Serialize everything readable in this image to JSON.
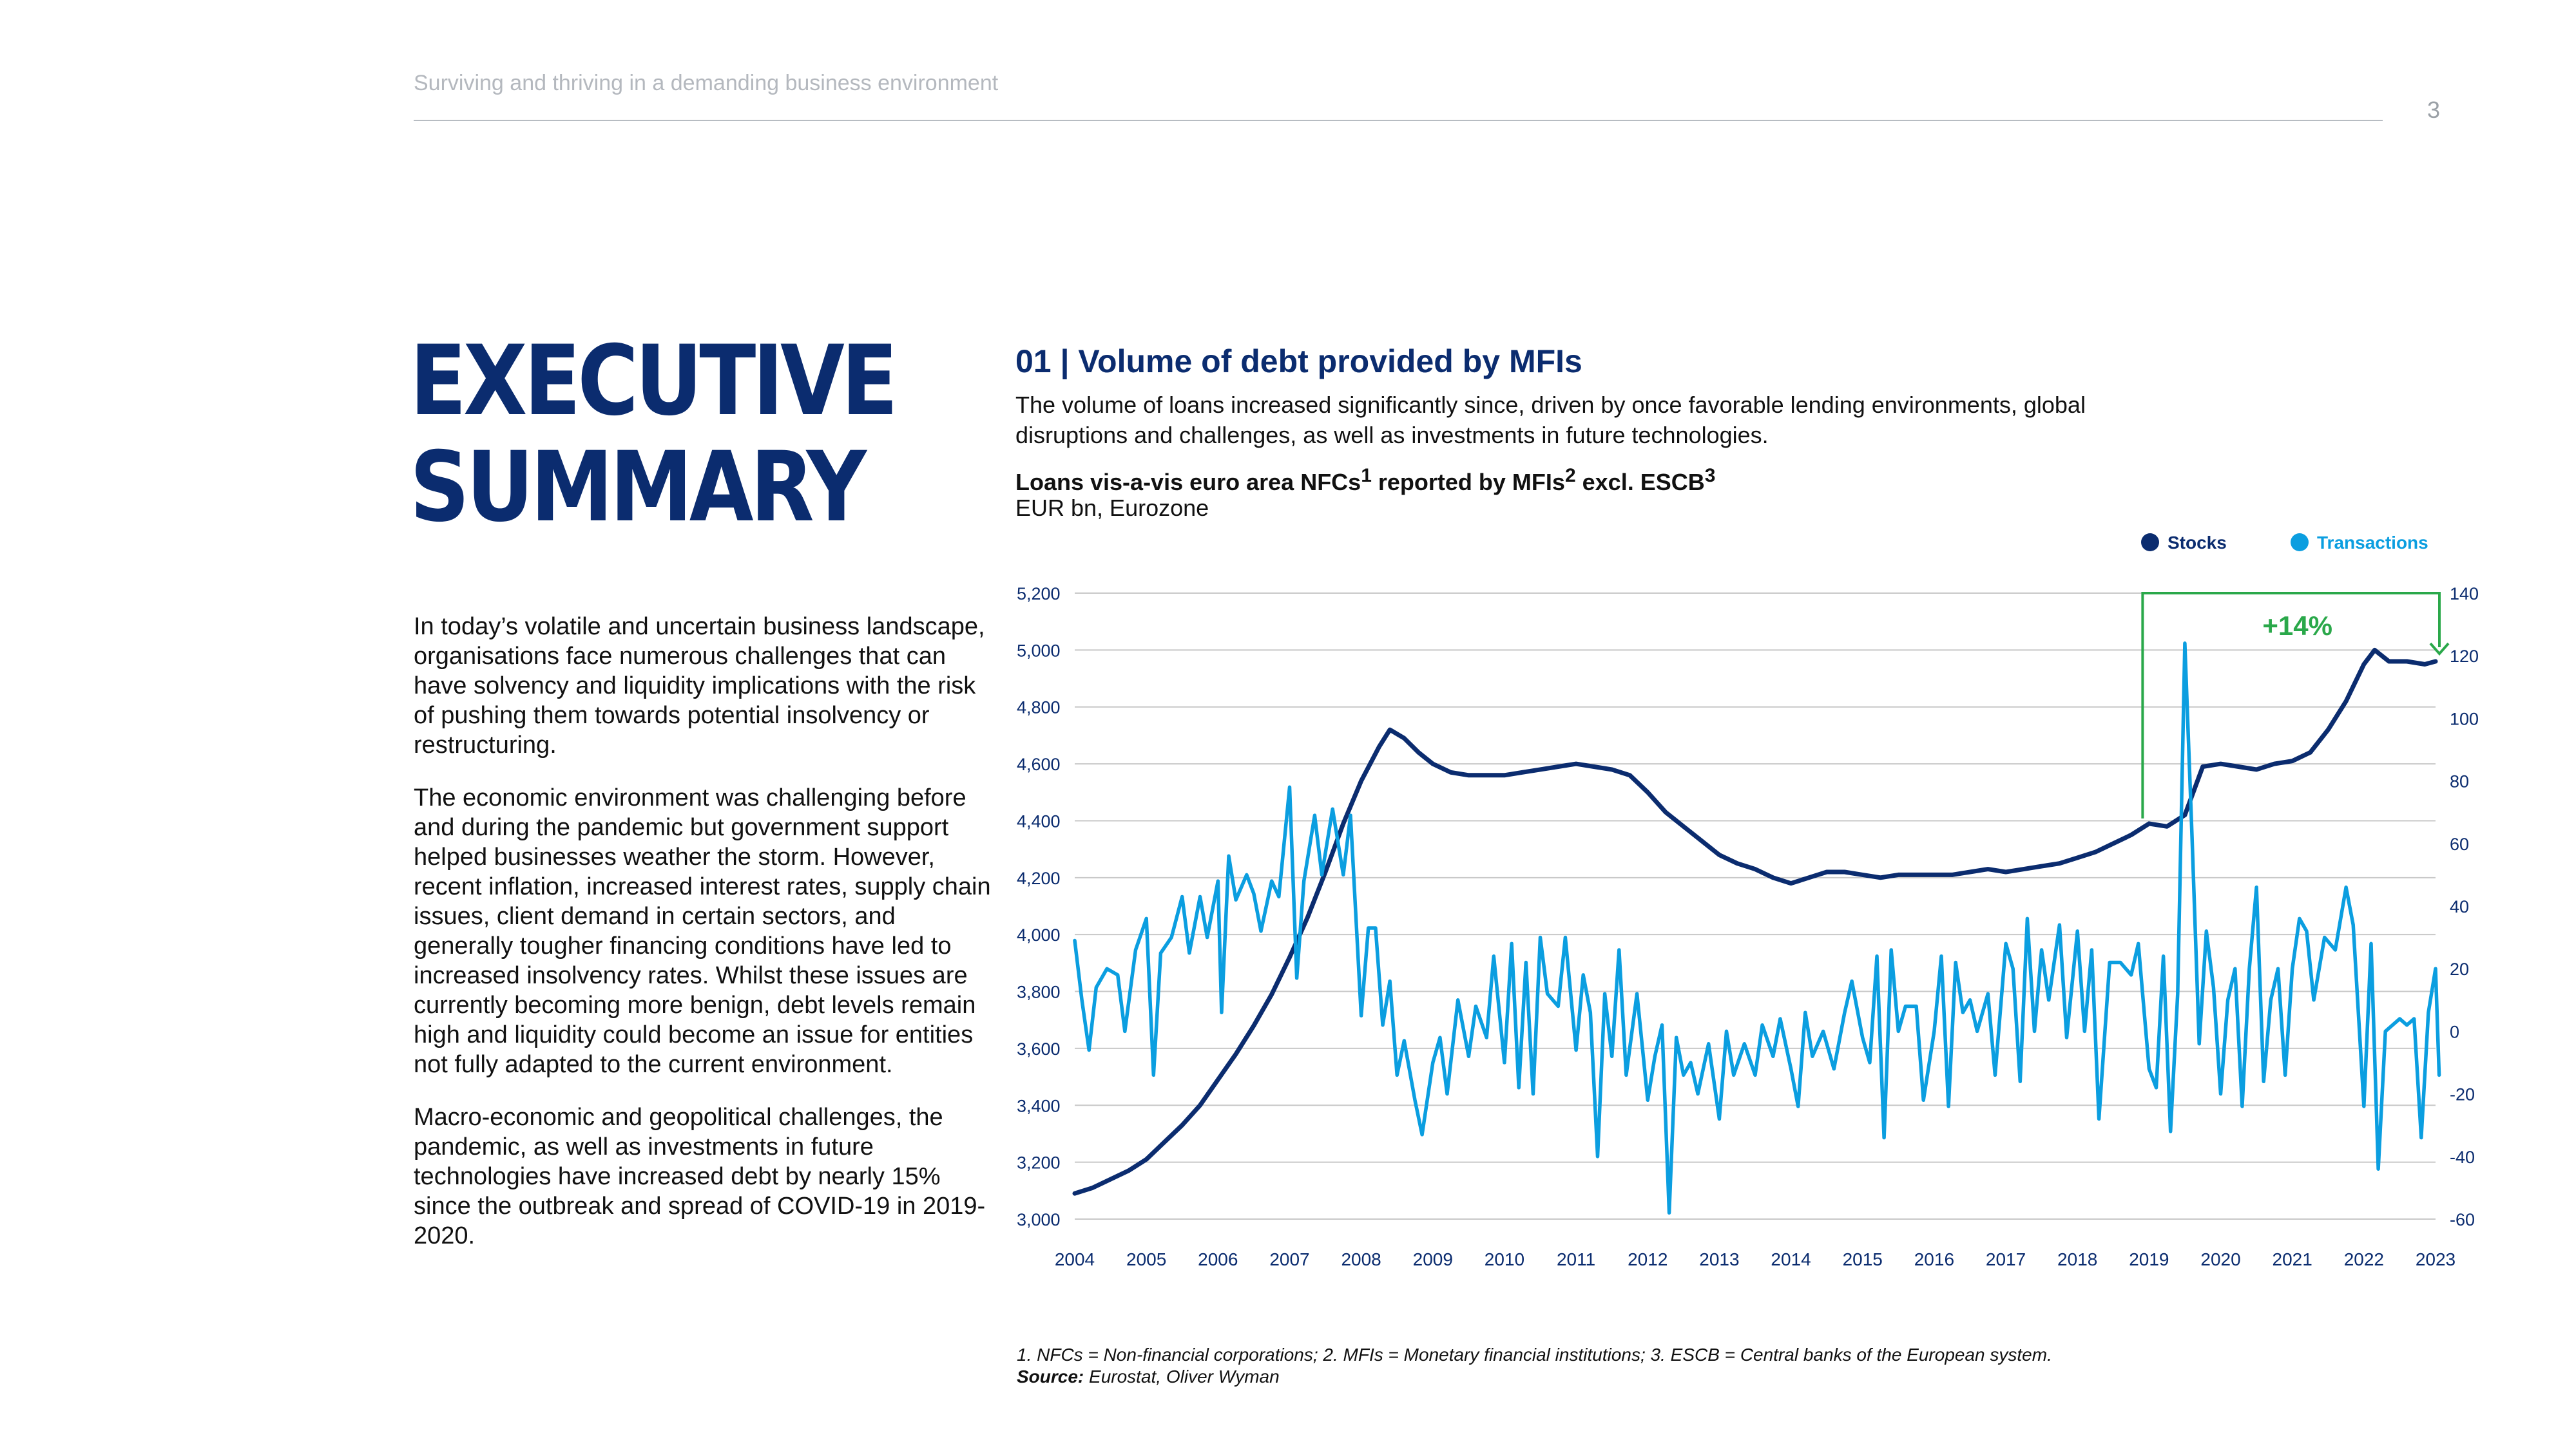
{
  "header": {
    "title": "Surviving and thriving in a demanding business environment",
    "page_number": "3"
  },
  "summary": {
    "title_line1": "EXECUTIVE",
    "title_line2": "SUMMARY",
    "paragraph1": "In today’s volatile and uncertain business landscape, organisations face numerous challenges that can have solvency and liquidity implications with the risk of pushing them towards potential insolvency or restructuring.",
    "paragraph2": "The economic environment was challenging before and during the pandemic but government support helped businesses weather the storm. However, recent inflation, increased interest rates, supply chain issues, client demand in certain sectors, and generally tougher financing conditions have led to increased insolvency rates. Whilst these issues are currently becoming more benign, debt levels remain high and liquidity could become an issue for entities not fully adapted to the current environment.",
    "paragraph3": "Macro-economic and geopolitical challenges, the pandemic, as well as investments in future technologies have increased debt by nearly 15% since the outbreak and spread of COVID-19 in 2019-2020."
  },
  "chart_section": {
    "title": "01 | Volume of debt provided by MFIs",
    "description": "The volume of loans increased significantly since, driven by once favorable lending environments, global disruptions and challenges, as well as investments in future technologies.",
    "subtitle_main": "Loans vis-a-vis euro area NFCs",
    "sup1": "1",
    "subtitle_mid": " reported by MFIs",
    "sup2": "2",
    "subtitle_end": " excl. ESCB",
    "sup3": "3",
    "unit": "EUR bn, Eurozone"
  },
  "colors": {
    "stocks": "#0b2c6f",
    "transactions": "#0b9ee0",
    "annotation": "#2aa84a",
    "grid": "#c8c8c8"
  },
  "chart_data": {
    "type": "line",
    "x_labels": [
      "2004",
      "2005",
      "2006",
      "2007",
      "2008",
      "2009",
      "2010",
      "2011",
      "2012",
      "2013",
      "2014",
      "2015",
      "2016",
      "2017",
      "2018",
      "2019",
      "2020",
      "2021",
      "2022",
      "2023"
    ],
    "left_axis": {
      "min": 3000,
      "max": 5200,
      "ticks": [
        "3,000",
        "3,200",
        "3,400",
        "3,600",
        "3,800",
        "4,000",
        "4,200",
        "4,400",
        "4,600",
        "4,800",
        "5,000",
        "5,200"
      ]
    },
    "right_axis": {
      "min": -60,
      "max": 140,
      "ticks": [
        "-60",
        "-40",
        "-20",
        "0",
        "20",
        "40",
        "60",
        "80",
        "100",
        "120",
        "140"
      ]
    },
    "legend": {
      "position": "top-right",
      "items": [
        "Stocks",
        "Transactions"
      ]
    },
    "annotation": {
      "label": "+14%",
      "from_year": 2019.0,
      "to_year": 2023.0,
      "level": 5200
    },
    "series": [
      {
        "name": "Stocks",
        "axis": "left",
        "points": [
          [
            2004.0,
            3090
          ],
          [
            2004.25,
            3110
          ],
          [
            2004.5,
            3140
          ],
          [
            2004.75,
            3170
          ],
          [
            2005.0,
            3210
          ],
          [
            2005.25,
            3270
          ],
          [
            2005.5,
            3330
          ],
          [
            2005.75,
            3400
          ],
          [
            2006.0,
            3490
          ],
          [
            2006.25,
            3580
          ],
          [
            2006.5,
            3680
          ],
          [
            2006.75,
            3790
          ],
          [
            2007.0,
            3920
          ],
          [
            2007.25,
            4060
          ],
          [
            2007.5,
            4220
          ],
          [
            2007.75,
            4390
          ],
          [
            2008.0,
            4540
          ],
          [
            2008.25,
            4660
          ],
          [
            2008.4,
            4720
          ],
          [
            2008.6,
            4690
          ],
          [
            2008.8,
            4640
          ],
          [
            2009.0,
            4600
          ],
          [
            2009.25,
            4570
          ],
          [
            2009.5,
            4560
          ],
          [
            2009.75,
            4560
          ],
          [
            2010.0,
            4560
          ],
          [
            2010.25,
            4570
          ],
          [
            2010.5,
            4580
          ],
          [
            2010.75,
            4590
          ],
          [
            2011.0,
            4600
          ],
          [
            2011.25,
            4590
          ],
          [
            2011.5,
            4580
          ],
          [
            2011.75,
            4560
          ],
          [
            2012.0,
            4500
          ],
          [
            2012.25,
            4430
          ],
          [
            2012.5,
            4380
          ],
          [
            2012.75,
            4330
          ],
          [
            2013.0,
            4280
          ],
          [
            2013.25,
            4250
          ],
          [
            2013.5,
            4230
          ],
          [
            2013.75,
            4200
          ],
          [
            2014.0,
            4180
          ],
          [
            2014.25,
            4200
          ],
          [
            2014.5,
            4220
          ],
          [
            2014.75,
            4220
          ],
          [
            2015.0,
            4210
          ],
          [
            2015.25,
            4200
          ],
          [
            2015.5,
            4210
          ],
          [
            2015.75,
            4210
          ],
          [
            2016.0,
            4210
          ],
          [
            2016.25,
            4210
          ],
          [
            2016.5,
            4220
          ],
          [
            2016.75,
            4230
          ],
          [
            2017.0,
            4220
          ],
          [
            2017.25,
            4230
          ],
          [
            2017.5,
            4240
          ],
          [
            2017.75,
            4250
          ],
          [
            2018.0,
            4270
          ],
          [
            2018.25,
            4290
          ],
          [
            2018.5,
            4320
          ],
          [
            2018.75,
            4350
          ],
          [
            2019.0,
            4390
          ],
          [
            2019.25,
            4380
          ],
          [
            2019.5,
            4420
          ],
          [
            2019.75,
            4590
          ],
          [
            2020.0,
            4600
          ],
          [
            2020.25,
            4590
          ],
          [
            2020.5,
            4580
          ],
          [
            2020.75,
            4600
          ],
          [
            2021.0,
            4610
          ],
          [
            2021.25,
            4640
          ],
          [
            2021.5,
            4720
          ],
          [
            2021.75,
            4820
          ],
          [
            2022.0,
            4950
          ],
          [
            2022.15,
            5000
          ],
          [
            2022.35,
            4960
          ],
          [
            2022.6,
            4960
          ],
          [
            2022.85,
            4950
          ],
          [
            2023.0,
            4960
          ]
        ]
      },
      {
        "name": "Transactions",
        "axis": "right",
        "points": [
          [
            2004.0,
            29
          ],
          [
            2004.1,
            10
          ],
          [
            2004.2,
            -6
          ],
          [
            2004.3,
            14
          ],
          [
            2004.45,
            20
          ],
          [
            2004.6,
            18
          ],
          [
            2004.7,
            0
          ],
          [
            2004.85,
            26
          ],
          [
            2005.0,
            36
          ],
          [
            2005.1,
            -14
          ],
          [
            2005.2,
            25
          ],
          [
            2005.35,
            30
          ],
          [
            2005.5,
            43
          ],
          [
            2005.6,
            25
          ],
          [
            2005.75,
            43
          ],
          [
            2005.85,
            30
          ],
          [
            2006.0,
            48
          ],
          [
            2006.05,
            6
          ],
          [
            2006.15,
            56
          ],
          [
            2006.25,
            42
          ],
          [
            2006.4,
            50
          ],
          [
            2006.5,
            44
          ],
          [
            2006.6,
            32
          ],
          [
            2006.75,
            48
          ],
          [
            2006.85,
            43
          ],
          [
            2007.0,
            78
          ],
          [
            2007.1,
            17
          ],
          [
            2007.2,
            48
          ],
          [
            2007.35,
            69
          ],
          [
            2007.45,
            50
          ],
          [
            2007.6,
            71
          ],
          [
            2007.75,
            50
          ],
          [
            2007.85,
            69
          ],
          [
            2008.0,
            5
          ],
          [
            2008.1,
            33
          ],
          [
            2008.2,
            33
          ],
          [
            2008.3,
            2
          ],
          [
            2008.4,
            16
          ],
          [
            2008.5,
            -14
          ],
          [
            2008.6,
            -3
          ],
          [
            2008.75,
            -22
          ],
          [
            2008.85,
            -33
          ],
          [
            2009.0,
            -10
          ],
          [
            2009.1,
            -2
          ],
          [
            2009.2,
            -20
          ],
          [
            2009.35,
            10
          ],
          [
            2009.5,
            -8
          ],
          [
            2009.6,
            8
          ],
          [
            2009.75,
            -2
          ],
          [
            2009.85,
            24
          ],
          [
            2010.0,
            -10
          ],
          [
            2010.1,
            28
          ],
          [
            2010.2,
            -18
          ],
          [
            2010.3,
            22
          ],
          [
            2010.4,
            -20
          ],
          [
            2010.5,
            30
          ],
          [
            2010.6,
            12
          ],
          [
            2010.75,
            8
          ],
          [
            2010.85,
            30
          ],
          [
            2011.0,
            -6
          ],
          [
            2011.1,
            18
          ],
          [
            2011.2,
            6
          ],
          [
            2011.3,
            -40
          ],
          [
            2011.4,
            12
          ],
          [
            2011.5,
            -8
          ],
          [
            2011.6,
            26
          ],
          [
            2011.7,
            -14
          ],
          [
            2011.85,
            12
          ],
          [
            2012.0,
            -22
          ],
          [
            2012.1,
            -8
          ],
          [
            2012.2,
            2
          ],
          [
            2012.3,
            -58
          ],
          [
            2012.4,
            -2
          ],
          [
            2012.5,
            -14
          ],
          [
            2012.6,
            -10
          ],
          [
            2012.7,
            -20
          ],
          [
            2012.85,
            -4
          ],
          [
            2013.0,
            -28
          ],
          [
            2013.1,
            0
          ],
          [
            2013.2,
            -14
          ],
          [
            2013.35,
            -4
          ],
          [
            2013.5,
            -14
          ],
          [
            2013.6,
            2
          ],
          [
            2013.75,
            -8
          ],
          [
            2013.85,
            4
          ],
          [
            2014.0,
            -12
          ],
          [
            2014.1,
            -24
          ],
          [
            2014.2,
            6
          ],
          [
            2014.3,
            -8
          ],
          [
            2014.45,
            0
          ],
          [
            2014.6,
            -12
          ],
          [
            2014.75,
            6
          ],
          [
            2014.85,
            16
          ],
          [
            2015.0,
            -2
          ],
          [
            2015.1,
            -10
          ],
          [
            2015.2,
            24
          ],
          [
            2015.3,
            -34
          ],
          [
            2015.4,
            26
          ],
          [
            2015.5,
            0
          ],
          [
            2015.6,
            8
          ],
          [
            2015.75,
            8
          ],
          [
            2015.85,
            -22
          ],
          [
            2016.0,
            0
          ],
          [
            2016.1,
            24
          ],
          [
            2016.2,
            -24
          ],
          [
            2016.3,
            22
          ],
          [
            2016.4,
            6
          ],
          [
            2016.5,
            10
          ],
          [
            2016.6,
            0
          ],
          [
            2016.75,
            12
          ],
          [
            2016.85,
            -14
          ],
          [
            2017.0,
            28
          ],
          [
            2017.1,
            20
          ],
          [
            2017.2,
            -16
          ],
          [
            2017.3,
            36
          ],
          [
            2017.4,
            0
          ],
          [
            2017.5,
            26
          ],
          [
            2017.6,
            10
          ],
          [
            2017.75,
            34
          ],
          [
            2017.85,
            -2
          ],
          [
            2018.0,
            32
          ],
          [
            2018.1,
            0
          ],
          [
            2018.2,
            26
          ],
          [
            2018.3,
            -28
          ],
          [
            2018.45,
            22
          ],
          [
            2018.6,
            22
          ],
          [
            2018.75,
            18
          ],
          [
            2018.85,
            28
          ],
          [
            2019.0,
            -12
          ],
          [
            2019.1,
            -18
          ],
          [
            2019.2,
            24
          ],
          [
            2019.3,
            -32
          ],
          [
            2019.4,
            12
          ],
          [
            2019.5,
            124
          ],
          [
            2019.6,
            62
          ],
          [
            2019.7,
            -4
          ],
          [
            2019.8,
            32
          ],
          [
            2019.9,
            14
          ],
          [
            2020.0,
            -20
          ],
          [
            2020.1,
            10
          ],
          [
            2020.2,
            20
          ],
          [
            2020.3,
            -24
          ],
          [
            2020.4,
            20
          ],
          [
            2020.5,
            46
          ],
          [
            2020.6,
            -16
          ],
          [
            2020.7,
            10
          ],
          [
            2020.8,
            20
          ],
          [
            2020.9,
            -14
          ],
          [
            2021.0,
            20
          ],
          [
            2021.1,
            36
          ],
          [
            2021.2,
            32
          ],
          [
            2021.3,
            10
          ],
          [
            2021.45,
            30
          ],
          [
            2021.6,
            26
          ],
          [
            2021.75,
            46
          ],
          [
            2021.85,
            34
          ],
          [
            2022.0,
            -24
          ],
          [
            2022.1,
            28
          ],
          [
            2022.2,
            -44
          ],
          [
            2022.3,
            0
          ],
          [
            2022.4,
            2
          ],
          [
            2022.5,
            4
          ],
          [
            2022.6,
            2
          ],
          [
            2022.7,
            4
          ],
          [
            2022.8,
            -34
          ],
          [
            2022.9,
            6
          ],
          [
            2023.0,
            20
          ],
          [
            2023.05,
            -14
          ]
        ]
      }
    ]
  },
  "footnotes": {
    "notes": "1. NFCs = Non-financial corporations; 2. MFIs = Monetary financial institutions; 3. ESCB = Central banks of the European system.",
    "source_label": "Source:",
    "source_text": " Eurostat, Oliver Wyman"
  }
}
